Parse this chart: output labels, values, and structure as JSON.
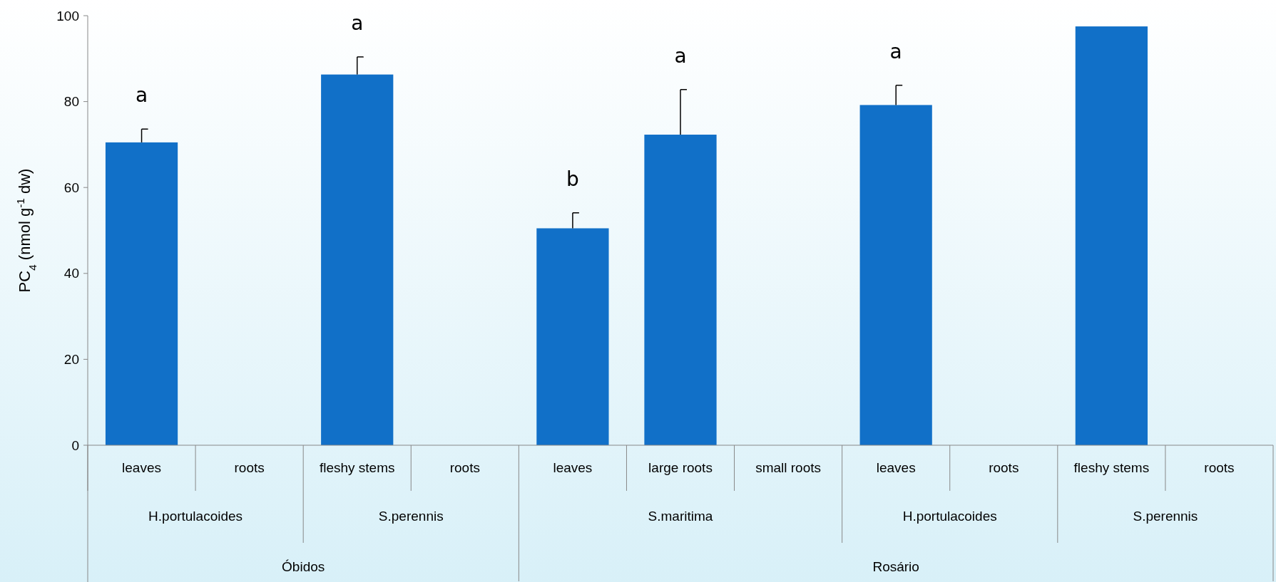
{
  "chart_data": {
    "type": "bar",
    "ylabel": "PC$_{4}$ (nmol g$^{-1}$ dw)",
    "categories": [
      "leaves",
      "roots",
      "fleshy stems",
      "roots",
      "leaves",
      "large roots",
      "small roots",
      "leaves",
      "roots",
      "fleshy stems",
      "roots"
    ],
    "values": [
      70.5,
      null,
      86.3,
      null,
      50.5,
      72.3,
      null,
      79.2,
      null,
      97.5,
      null
    ],
    "errors": [
      [
        70.5,
        73.6
      ],
      null,
      [
        86.3,
        90.4
      ],
      null,
      [
        50.5,
        54.1
      ],
      [
        72.3,
        82.8
      ],
      null,
      [
        79.2,
        83.8
      ],
      null,
      null,
      null
    ],
    "color": "#1170c8",
    "ylim": [
      0,
      100
    ],
    "yticks": [
      0,
      20,
      40,
      60,
      80,
      100
    ],
    "grid": false,
    "annotations": [
      "a",
      "a",
      "b",
      "a",
      "a",
      "H.portulacoides",
      "S.perennis",
      "S.maritima",
      "H.portulacoides",
      "S.perennis",
      "Óbidos",
      "Rosário"
    ]
  }
}
